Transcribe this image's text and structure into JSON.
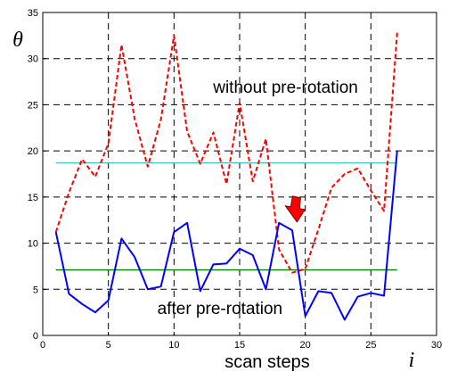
{
  "chart_data": {
    "type": "line",
    "title": "",
    "xlabel": "scan steps",
    "xlabel_symbol": "i",
    "ylabel": "θ",
    "xlim": [
      0,
      30
    ],
    "ylim": [
      0,
      35
    ],
    "xticks": [
      0,
      5,
      10,
      15,
      20,
      25,
      30
    ],
    "yticks": [
      0,
      5,
      10,
      15,
      20,
      25,
      30,
      35
    ],
    "grid": true,
    "x": [
      1,
      2,
      3,
      4,
      5,
      6,
      7,
      8,
      9,
      10,
      11,
      12,
      13,
      14,
      15,
      16,
      17,
      18,
      19,
      20,
      21,
      22,
      23,
      24,
      25,
      26,
      27
    ],
    "series": [
      {
        "name": "without pre-rotation",
        "color": "#ff0000",
        "style": "dashed",
        "values": [
          11.2,
          15.5,
          19.1,
          17.2,
          20.8,
          31.5,
          23.5,
          18.3,
          23.4,
          32.5,
          22.1,
          18.6,
          22.0,
          16.4,
          25.2,
          16.7,
          21.3,
          9.3,
          6.8,
          7.2,
          11.5,
          16.0,
          17.5,
          18.1,
          15.7,
          13.5,
          32.8
        ]
      },
      {
        "name": "after pre-rotation",
        "color": "#0000ff",
        "style": "solid",
        "values": [
          11.2,
          4.5,
          3.4,
          2.5,
          3.8,
          10.5,
          8.5,
          5.0,
          5.3,
          11.2,
          12.2,
          4.8,
          7.7,
          7.8,
          9.4,
          8.7,
          5.0,
          12.2,
          11.4,
          2.1,
          4.8,
          4.6,
          1.7,
          4.2,
          4.6,
          4.3,
          20.0
        ]
      }
    ],
    "reference_lines": [
      {
        "value": 18.7,
        "color": "#40c0c0"
      },
      {
        "value": 7.1,
        "color": "#008000"
      }
    ],
    "annotations": [
      {
        "text": "without pre-rotation",
        "x": 18.5,
        "y": 26.3
      },
      {
        "text": "after pre-rotation",
        "x": 13.5,
        "y": 2.3
      }
    ],
    "arrow": {
      "x": 19.3,
      "y": 12.2,
      "color": "#ff0000"
    }
  }
}
